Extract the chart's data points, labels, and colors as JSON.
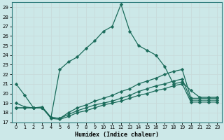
{
  "xlabel": "Humidex (Indice chaleur)",
  "bg_color": "#cce8e8",
  "grid_color": "#b8d8d8",
  "line_color": "#1a6b5a",
  "xlim": [
    -0.5,
    23.5
  ],
  "ylim": [
    17,
    29.5
  ],
  "yticks": [
    17,
    18,
    19,
    20,
    21,
    22,
    23,
    24,
    25,
    26,
    27,
    28,
    29
  ],
  "xticks": [
    0,
    1,
    2,
    3,
    4,
    5,
    6,
    7,
    8,
    9,
    10,
    11,
    12,
    13,
    14,
    15,
    16,
    17,
    18,
    19,
    20,
    21,
    22,
    23
  ],
  "x": [
    0,
    1,
    2,
    3,
    4,
    5,
    6,
    7,
    8,
    9,
    10,
    11,
    12,
    13,
    14,
    15,
    16,
    17,
    18,
    19,
    20,
    21,
    22,
    23
  ],
  "line_peak_y": [
    21.0,
    19.8,
    null,
    null,
    17.5,
    null,
    null,
    null,
    null,
    null,
    null,
    null,
    null,
    null,
    null,
    null,
    null,
    null,
    null,
    null,
    null,
    null,
    null,
    null
  ],
  "line1_y": [
    21.0,
    19.8,
    18.5,
    18.6,
    17.5,
    22.5,
    23.3,
    23.8,
    24.7,
    25.5,
    26.5,
    27.0,
    29.3,
    26.5,
    25.0,
    24.5,
    24.0,
    22.8,
    21.0,
    21.2,
    20.3,
    19.6,
    19.6,
    19.6
  ],
  "line2_y": [
    19.0,
    18.6,
    18.5,
    18.5,
    17.5,
    17.4,
    18.0,
    18.5,
    18.8,
    19.2,
    19.5,
    19.8,
    20.2,
    20.5,
    21.0,
    21.3,
    21.6,
    22.0,
    22.3,
    22.5,
    19.5,
    19.5,
    19.5,
    19.5
  ],
  "line3_y": [
    18.5,
    18.5,
    18.5,
    18.5,
    17.5,
    17.4,
    17.8,
    18.2,
    18.5,
    18.8,
    19.0,
    19.2,
    19.5,
    19.8,
    20.2,
    20.5,
    20.8,
    21.0,
    21.3,
    21.5,
    19.3,
    19.3,
    19.3,
    19.3
  ],
  "line4_y": [
    18.5,
    18.5,
    18.5,
    18.5,
    17.4,
    17.3,
    17.6,
    18.0,
    18.2,
    18.5,
    18.8,
    19.0,
    19.2,
    19.5,
    19.8,
    20.0,
    20.3,
    20.5,
    20.8,
    21.0,
    19.1,
    19.1,
    19.1,
    19.1
  ],
  "marker_size": 2.5,
  "linewidth": 0.9
}
